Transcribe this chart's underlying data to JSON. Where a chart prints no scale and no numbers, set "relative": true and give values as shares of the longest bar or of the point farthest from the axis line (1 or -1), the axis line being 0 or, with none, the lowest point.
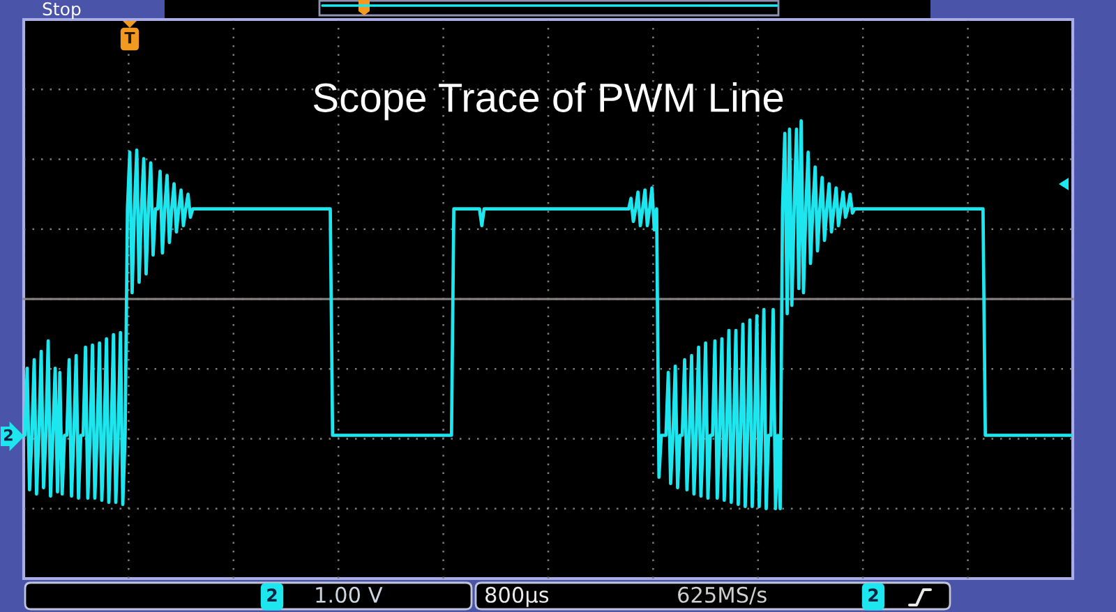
{
  "chart_data": {
    "type": "line",
    "title": "Scope Trace of PWM Line",
    "relative": true,
    "grid": true,
    "categories": [
      null,
      null,
      null,
      null,
      null,
      null,
      null,
      null,
      null,
      null,
      null,
      null,
      null,
      null,
      null,
      null,
      null,
      null,
      null,
      null,
      null,
      null,
      null,
      null,
      null,
      null,
      null,
      null,
      null,
      null,
      null,
      null,
      null,
      null,
      null,
      null,
      null,
      null,
      null,
      null,
      null,
      null,
      null,
      null,
      null,
      null,
      null,
      null,
      null,
      null,
      null,
      null,
      null,
      null,
      null,
      null,
      null,
      null,
      null,
      null,
      null,
      null,
      null,
      null,
      null,
      null,
      null,
      null,
      null,
      null,
      null,
      null,
      null,
      null,
      null,
      null,
      null,
      null,
      null,
      null,
      null,
      null,
      null,
      null,
      null,
      null,
      null,
      null,
      null,
      null,
      null,
      null,
      null,
      null,
      null,
      null,
      null,
      null,
      null,
      null,
      null,
      null,
      null,
      null,
      null,
      null,
      null,
      null,
      null,
      null,
      null,
      null,
      null,
      null,
      null,
      null,
      null,
      null,
      null,
      null,
      null,
      null,
      null,
      null,
      null,
      null,
      null,
      null,
      null,
      null,
      null,
      null,
      null,
      null,
      null,
      null,
      null,
      null,
      null,
      null,
      null,
      null,
      null,
      null,
      null,
      null,
      null,
      null,
      null,
      null,
      null,
      null,
      null,
      null,
      null,
      null,
      null,
      null,
      null,
      null,
      null,
      null,
      null,
      null,
      null,
      null,
      null,
      null,
      null,
      null,
      null,
      null,
      null,
      null,
      null,
      null,
      null,
      null,
      null,
      null,
      null,
      null,
      null,
      null,
      null,
      null,
      null,
      null,
      null,
      null,
      null,
      null,
      null,
      null,
      null,
      null,
      null,
      null,
      null,
      null,
      null,
      null,
      null,
      null,
      null,
      null,
      null,
      null,
      null,
      null,
      null,
      null,
      null,
      null,
      null,
      null,
      null,
      null,
      null,
      null,
      null,
      null,
      null,
      null,
      null,
      null,
      null,
      null,
      null,
      null,
      null,
      null,
      null,
      null,
      null,
      null,
      null,
      null,
      null,
      null,
      null,
      null,
      null,
      null,
      null,
      null,
      null,
      null,
      null,
      null,
      null,
      null,
      null,
      null,
      null,
      null,
      null,
      null,
      null,
      null,
      null,
      null,
      null,
      null,
      null,
      null,
      null,
      null,
      null,
      null,
      null,
      null,
      null,
      null,
      null,
      null,
      null,
      null,
      null,
      null,
      null,
      null,
      null,
      null,
      null,
      null,
      null,
      null,
      null,
      null,
      null,
      null,
      null,
      null,
      null,
      null,
      null,
      null,
      null,
      null,
      null,
      null,
      null,
      null,
      null,
      null,
      null,
      null,
      null,
      null,
      null,
      null,
      null,
      null,
      null,
      null,
      null,
      null,
      null,
      null,
      null,
      null,
      null,
      null,
      null,
      null,
      null,
      null,
      null,
      null,
      null,
      null,
      null,
      null,
      null,
      null,
      null,
      null,
      null,
      null,
      null,
      null,
      null,
      null,
      null,
      null,
      null,
      null,
      null,
      null,
      null,
      null,
      null,
      null,
      null,
      null,
      null,
      null,
      null,
      null,
      null,
      null,
      null,
      null,
      null,
      null,
      null,
      null,
      null,
      null,
      null,
      null,
      null,
      null,
      null,
      null,
      null,
      null,
      null,
      null,
      null,
      null,
      null,
      null,
      null,
      null,
      null,
      null,
      null,
      null,
      null,
      null,
      null,
      null,
      null,
      null,
      null,
      null,
      null,
      null,
      null,
      null,
      null,
      null,
      null,
      null,
      null,
      null,
      null,
      null,
      null,
      null,
      null,
      null,
      null,
      null,
      null,
      null,
      null,
      null,
      null,
      null,
      null,
      null,
      null,
      null,
      null,
      null,
      null,
      null,
      null,
      null,
      null,
      null,
      null,
      null,
      null,
      null,
      null,
      null,
      null,
      null,
      null,
      null,
      null,
      null,
      null,
      null,
      null,
      null
    ],
    "series": [
      {
        "color": "#1ee6ef",
        "values": [
          -0.65,
          -0.33,
          -0.91,
          -0.65,
          -0.29,
          -0.93,
          -0.65,
          -0.25,
          -0.9,
          -0.65,
          -0.2,
          -0.94,
          -0.65,
          -0.33,
          -0.92,
          -0.35,
          -0.93,
          -0.65,
          -0.65,
          -0.29,
          -0.94,
          -0.65,
          -0.27,
          -0.95,
          -0.65,
          -0.65,
          -0.23,
          -0.95,
          -0.65,
          -0.22,
          -0.95,
          -0.65,
          -0.21,
          -0.96,
          -0.65,
          -0.19,
          -0.97,
          -0.65,
          -0.17,
          -0.97,
          -0.65,
          -0.16,
          -0.98,
          -0.65,
          0.43,
          0.7,
          0.03,
          0.43,
          0.71,
          0.08,
          0.43,
          0.67,
          0.12,
          0.43,
          0.65,
          0.21,
          0.43,
          0.43,
          0.61,
          0.22,
          0.43,
          0.59,
          0.27,
          0.43,
          0.55,
          0.32,
          0.43,
          0.52,
          0.35,
          0.43,
          0.5,
          0.39,
          0.43,
          0.43,
          0.43,
          0.43,
          0.43,
          0.43,
          0.43,
          0.43,
          0.43,
          0.43,
          0.43,
          0.43,
          0.43,
          0.43,
          0.43,
          0.43,
          0.43,
          0.43,
          0.43,
          0.43,
          0.43,
          0.43,
          0.43,
          0.43,
          0.43,
          0.43,
          0.43,
          0.43,
          0.43,
          0.43,
          0.43,
          0.43,
          0.43,
          0.43,
          0.43,
          0.43,
          0.43,
          0.43,
          0.43,
          0.43,
          0.43,
          0.43,
          0.43,
          0.43,
          0.43,
          0.43,
          0.43,
          0.43,
          0.43,
          0.43,
          0.43,
          0.43,
          0.43,
          0.43,
          0.43,
          0.43,
          0.43,
          0.43,
          0.43,
          0.43,
          -0.65,
          -0.65,
          -0.65,
          -0.65,
          -0.65,
          -0.65,
          -0.65,
          -0.65,
          -0.65,
          -0.65,
          -0.65,
          -0.65,
          -0.65,
          -0.65,
          -0.65,
          -0.65,
          -0.65,
          -0.65,
          -0.65,
          -0.65,
          -0.65,
          -0.65,
          -0.65,
          -0.65,
          -0.65,
          -0.65,
          -0.65,
          -0.65,
          -0.65,
          -0.65,
          -0.65,
          -0.65,
          -0.65,
          -0.65,
          -0.65,
          -0.65,
          -0.65,
          -0.65,
          -0.65,
          -0.65,
          -0.65,
          -0.65,
          -0.65,
          -0.65,
          -0.65,
          -0.65,
          -0.65,
          -0.65,
          -0.65,
          -0.65,
          -0.65,
          -0.65,
          0.43,
          0.43,
          0.43,
          0.43,
          0.43,
          0.43,
          0.43,
          0.43,
          0.43,
          0.43,
          0.43,
          0.43,
          0.35,
          0.43,
          0.43,
          0.43,
          0.43,
          0.43,
          0.43,
          0.43,
          0.43,
          0.43,
          0.43,
          0.43,
          0.43,
          0.43,
          0.43,
          0.43,
          0.43,
          0.43,
          0.43,
          0.43,
          0.43,
          0.43,
          0.43,
          0.43,
          0.43,
          0.43,
          0.43,
          0.43,
          0.43,
          0.43,
          0.43,
          0.43,
          0.43,
          0.43,
          0.43,
          0.43,
          0.43,
          0.43,
          0.43,
          0.43,
          0.43,
          0.43,
          0.43,
          0.43,
          0.43,
          0.43,
          0.43,
          0.43,
          0.43,
          0.43,
          0.43,
          0.43,
          0.43,
          0.43,
          0.43,
          0.43,
          0.43,
          0.43,
          0.43,
          0.43,
          0.43,
          0.43,
          0.43,
          0.43,
          0.48,
          0.37,
          0.43,
          0.51,
          0.35,
          0.43,
          0.52,
          0.35,
          0.43,
          0.53,
          0.33,
          0.43,
          -0.85,
          -0.65,
          -0.65,
          -0.65,
          -0.35,
          -0.88,
          -0.65,
          -0.32,
          -0.9,
          -0.65,
          -0.65,
          -0.29,
          -0.91,
          -0.65,
          -0.27,
          -0.93,
          -0.65,
          -0.23,
          -0.94,
          -0.65,
          -0.21,
          -0.95,
          -0.65,
          -0.65,
          -0.2,
          -0.95,
          -0.65,
          -0.19,
          -0.96,
          -0.65,
          -0.15,
          -0.97,
          -0.65,
          -0.15,
          -0.98,
          -0.65,
          -0.12,
          -0.99,
          -0.65,
          -0.1,
          -0.99,
          -0.65,
          -0.08,
          -0.99,
          -0.65,
          -0.05,
          -1.0,
          -0.65,
          -0.65,
          -0.05,
          -1.0,
          -0.65,
          -1.0,
          0.43,
          0.79,
          -0.07,
          0.81,
          -0.03,
          0.43,
          0.81,
          0.05,
          0.85,
          0.03,
          0.43,
          0.7,
          0.17,
          0.43,
          0.63,
          0.23,
          0.43,
          0.58,
          0.28,
          0.43,
          0.55,
          0.32,
          0.43,
          0.53,
          0.35,
          0.43,
          0.51,
          0.39,
          0.43,
          0.5,
          0.41,
          0.43,
          0.43,
          0.43,
          0.43,
          0.43,
          0.43,
          0.43,
          0.43,
          0.43,
          0.43,
          0.43,
          0.43,
          0.43,
          0.43,
          0.43,
          0.43,
          0.43,
          0.43,
          0.43,
          0.43,
          0.43,
          0.43,
          0.43,
          0.43,
          0.43,
          0.43,
          0.43,
          0.43,
          0.43,
          0.43,
          0.43,
          0.43,
          0.43,
          0.43,
          0.43,
          0.43,
          0.43,
          0.43,
          0.43,
          0.43,
          0.43,
          0.43,
          0.43,
          0.43,
          0.43,
          0.43,
          0.43,
          0.43,
          0.43,
          0.43,
          0.43,
          0.43,
          0.43,
          0.43,
          0.43,
          0.43,
          -0.65,
          -0.65,
          -0.65,
          -0.65,
          -0.65,
          -0.65,
          -0.65,
          -0.65,
          -0.65,
          -0.65,
          -0.65,
          -0.65,
          -0.65,
          -0.65,
          -0.65,
          -0.65,
          -0.65,
          -0.65,
          -0.65,
          -0.65,
          -0.65,
          -0.65,
          -0.65,
          -0.65,
          -0.65,
          -0.65,
          -0.65,
          -0.65,
          -0.65,
          -0.65,
          -0.65,
          -0.65,
          -0.65,
          -0.65,
          -0.65,
          -0.65,
          -0.65,
          -0.65
        ]
      }
    ],
    "annotations": [
      "Stop",
      "T",
      "2",
      "1.00 V",
      "800µs",
      "625MS/s",
      "2",
      "2"
    ]
  }
}
